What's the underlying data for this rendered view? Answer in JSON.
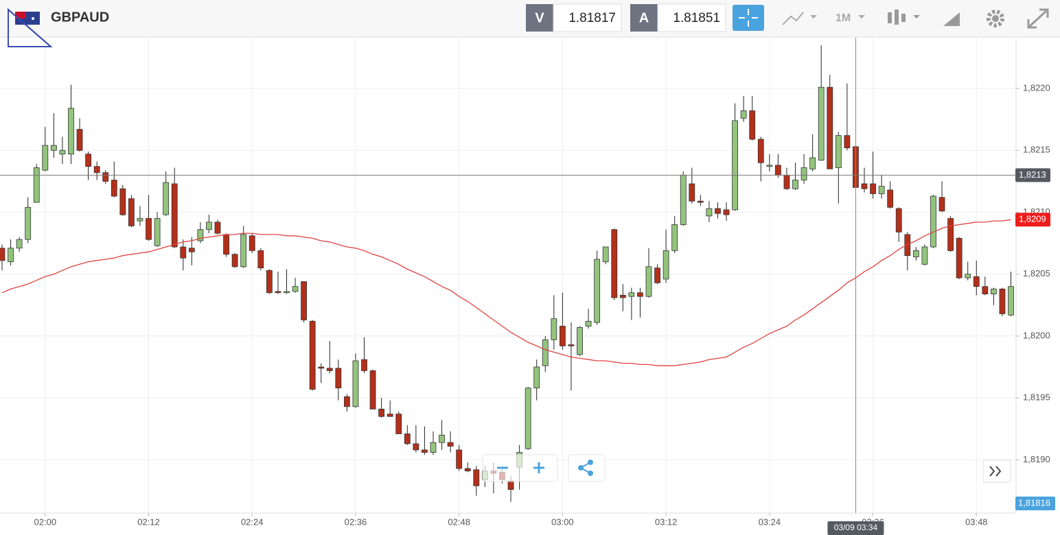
{
  "header": {
    "symbol": "GBPAUD",
    "bid_label": "V",
    "bid": 1.81817,
    "ask_label": "A",
    "ask": 1.81851,
    "timeframe": "1M"
  },
  "chart_data": {
    "type": "candlestick",
    "x": [
      "01:55",
      "01:56",
      "01:57",
      "01:58",
      "01:59",
      "02:00",
      "02:01",
      "02:02",
      "02:03",
      "02:04",
      "02:05",
      "02:06",
      "02:07",
      "02:08",
      "02:09",
      "02:10",
      "02:11",
      "02:12",
      "02:13",
      "02:14",
      "02:15",
      "02:16",
      "02:17",
      "02:18",
      "02:19",
      "02:20",
      "02:21",
      "02:22",
      "02:23",
      "02:24",
      "02:25",
      "02:26",
      "02:27",
      "02:28",
      "02:29",
      "02:30",
      "02:31",
      "02:32",
      "02:33",
      "02:34",
      "02:35",
      "02:36",
      "02:37",
      "02:38",
      "02:39",
      "02:40",
      "02:41",
      "02:42",
      "02:43",
      "02:44",
      "02:45",
      "02:46",
      "02:47",
      "02:48",
      "02:49",
      "02:50",
      "02:51",
      "02:52",
      "02:53",
      "02:54",
      "02:55",
      "02:56",
      "02:57",
      "02:58",
      "02:59",
      "03:00",
      "03:01",
      "03:02",
      "03:03",
      "03:04",
      "03:05",
      "03:06",
      "03:07",
      "03:08",
      "03:09",
      "03:10",
      "03:11",
      "03:12",
      "03:13",
      "03:14",
      "03:15",
      "03:16",
      "03:17",
      "03:18",
      "03:19",
      "03:20",
      "03:21",
      "03:22",
      "03:23",
      "03:24",
      "03:25",
      "03:26",
      "03:27",
      "03:28",
      "03:29",
      "03:30",
      "03:31",
      "03:32",
      "03:33",
      "03:34",
      "03:35",
      "03:36",
      "03:37",
      "03:38",
      "03:39",
      "03:40",
      "03:41",
      "03:42",
      "03:43",
      "03:44",
      "03:45",
      "03:46",
      "03:47",
      "03:48",
      "03:49",
      "03:50",
      "03:51",
      "03:52"
    ],
    "open": [
      1.82071,
      1.8206,
      1.82071,
      1.82078,
      1.82108,
      1.82134,
      1.8215,
      1.82147,
      1.82147,
      1.82167,
      1.82147,
      1.82137,
      1.82132,
      1.82126,
      1.82119,
      1.82111,
      1.82093,
      1.82095,
      1.82073,
      1.82098,
      1.82123,
      1.82072,
      1.82071,
      1.82077,
      1.82086,
      1.82092,
      1.82082,
      1.82066,
      1.82056,
      1.82081,
      1.82069,
      1.82053,
      1.82036,
      1.82035,
      1.82036,
      1.82044,
      1.82012,
      1.81975,
      1.81974,
      1.81974,
      1.81951,
      1.81943,
      1.81981,
      1.81972,
      1.81941,
      1.81937,
      1.81937,
      1.81921,
      1.81913,
      1.81908,
      1.81906,
      1.81914,
      1.81914,
      1.81908,
      1.81893,
      1.81892,
      1.81884,
      1.81891,
      1.8189,
      1.81883,
      1.81894,
      1.81909,
      1.81958,
      1.81976,
      1.81997,
      1.82008,
      1.81993,
      1.81985,
      1.82008,
      1.82011,
      1.8206,
      1.82086,
      1.82033,
      1.82032,
      1.82035,
      1.82032,
      1.82055,
      1.82046,
      1.82069,
      1.8209,
      1.82123,
      1.82109,
      1.82097,
      1.82103,
      1.82102,
      1.82102,
      1.82176,
      1.82182,
      1.82159,
      1.82137,
      1.82138,
      1.8213,
      1.82119,
      1.82126,
      1.82135,
      1.82142,
      1.82201,
      1.82136,
      1.82162,
      1.82153,
      1.82123,
      1.82123,
      1.82115,
      1.82118,
      1.82103,
      1.82082,
      1.82064,
      1.82058,
      1.82072,
      1.82112,
      1.82095,
      1.82079,
      1.82047,
      1.82048,
      1.8204,
      1.82034,
      1.82038,
      1.82017
    ],
    "high": [
      1.82074,
      1.82078,
      1.8208,
      1.82112,
      1.82139,
      1.82169,
      1.8218,
      1.82161,
      1.82203,
      1.82176,
      1.82149,
      1.82141,
      1.82134,
      1.82141,
      1.82122,
      1.82114,
      1.82105,
      1.82114,
      1.821,
      1.82133,
      1.82136,
      1.82078,
      1.8208,
      1.82092,
      1.82098,
      1.82094,
      1.82083,
      1.82067,
      1.82089,
      1.82083,
      1.82071,
      1.82054,
      1.82052,
      1.82054,
      1.82047,
      1.82044,
      1.82013,
      1.81978,
      1.81996,
      1.81981,
      1.81953,
      1.81986,
      1.81999,
      1.81973,
      1.8195,
      1.81948,
      1.81939,
      1.81928,
      1.81928,
      1.81927,
      1.81923,
      1.81932,
      1.81923,
      1.81912,
      1.81898,
      1.81895,
      1.81895,
      1.81898,
      1.81895,
      1.81887,
      1.81912,
      1.81959,
      1.81981,
      1.82,
      1.82033,
      1.82035,
      1.82011,
      1.82008,
      1.82022,
      1.82069,
      1.82072,
      1.82087,
      1.82042,
      1.82039,
      1.82039,
      1.82071,
      1.82058,
      1.82086,
      1.82097,
      1.82133,
      1.82136,
      1.82114,
      1.82109,
      1.82108,
      1.82108,
      1.82188,
      1.82194,
      1.82194,
      1.82161,
      1.82147,
      1.82147,
      1.82136,
      1.8214,
      1.82147,
      1.82163,
      1.82235,
      1.82211,
      1.82165,
      1.82204,
      1.82154,
      1.82136,
      1.82149,
      1.8213,
      1.82125,
      1.82104,
      1.82084,
      1.82072,
      1.82074,
      1.82114,
      1.82125,
      1.82097,
      1.8208,
      1.8206,
      1.82061,
      1.82048,
      1.82039,
      1.82039,
      1.82052
    ],
    "low": [
      1.82053,
      1.82057,
      1.82068,
      1.82075,
      1.82108,
      1.82133,
      1.82144,
      1.82139,
      1.82139,
      1.82149,
      1.82126,
      1.82126,
      1.82123,
      1.82112,
      1.82097,
      1.82088,
      1.82089,
      1.82077,
      1.82072,
      1.82097,
      1.82071,
      1.82053,
      1.82057,
      1.82075,
      1.82083,
      1.82082,
      1.82064,
      1.82055,
      1.82055,
      1.82067,
      1.82053,
      1.82034,
      1.82034,
      1.82034,
      1.82035,
      1.82011,
      1.81956,
      1.81962,
      1.8197,
      1.81948,
      1.81939,
      1.81942,
      1.8197,
      1.81941,
      1.81934,
      1.81935,
      1.81921,
      1.81912,
      1.81906,
      1.81904,
      1.81904,
      1.81908,
      1.81906,
      1.81891,
      1.8189,
      1.81871,
      1.81878,
      1.81873,
      1.81881,
      1.81866,
      1.81876,
      1.81908,
      1.81948,
      1.81971,
      1.81989,
      1.81989,
      1.81956,
      1.81984,
      1.82006,
      1.82009,
      1.82058,
      1.82029,
      1.8202,
      1.82013,
      1.82015,
      1.82031,
      1.82042,
      1.82043,
      1.82067,
      1.82089,
      1.82107,
      1.82105,
      1.82092,
      1.82095,
      1.82093,
      1.82101,
      1.82173,
      1.82158,
      1.82125,
      1.82133,
      1.82128,
      1.82118,
      1.82118,
      1.82123,
      1.82133,
      1.82142,
      1.82135,
      1.82107,
      1.8215,
      1.8212,
      1.82116,
      1.82111,
      1.82111,
      1.82103,
      1.82076,
      1.82053,
      1.82061,
      1.82057,
      1.82071,
      1.821,
      1.82068,
      1.82046,
      1.82045,
      1.82033,
      1.82033,
      1.82025,
      1.82016,
      1.82016
    ],
    "close": [
      1.82061,
      1.82071,
      1.82078,
      1.82104,
      1.82136,
      1.82154,
      1.82154,
      1.8215,
      1.82184,
      1.8215,
      1.82137,
      1.82132,
      1.82125,
      1.82113,
      1.82098,
      1.82089,
      1.82095,
      1.82078,
      1.82095,
      1.82124,
      1.82072,
      1.82063,
      1.82068,
      1.82086,
      1.82092,
      1.82083,
      1.82066,
      1.82056,
      1.82082,
      1.82069,
      1.82055,
      1.82035,
      1.82035,
      1.82036,
      1.8204,
      1.82013,
      1.81957,
      1.81974,
      1.81972,
      1.81958,
      1.81943,
      1.8198,
      1.81972,
      1.81941,
      1.81935,
      1.81935,
      1.81921,
      1.81913,
      1.81908,
      1.81906,
      1.81914,
      1.8192,
      1.81911,
      1.81893,
      1.81891,
      1.81879,
      1.81891,
      1.81889,
      1.81884,
      1.81876,
      1.81906,
      1.81958,
      1.81975,
      1.81997,
      1.82014,
      1.81992,
      1.81992,
      1.82007,
      1.82012,
      1.82062,
      1.82072,
      1.82031,
      1.82031,
      1.82035,
      1.82032,
      1.82056,
      1.82043,
      1.82069,
      1.8209,
      1.8213,
      1.82109,
      1.82108,
      1.82103,
      1.82099,
      1.82098,
      1.82174,
      1.82182,
      1.82159,
      1.8214,
      1.82138,
      1.8213,
      1.82119,
      1.82126,
      1.82136,
      1.82144,
      1.82201,
      1.82135,
      1.82162,
      1.82152,
      1.8212,
      1.82119,
      1.82115,
      1.82121,
      1.82104,
      1.82084,
      1.82065,
      1.82069,
      1.82072,
      1.82113,
      1.82101,
      1.82069,
      1.82047,
      1.8205,
      1.8204,
      1.82034,
      1.82038,
      1.82018,
      1.8204
    ],
    "up_color": "#93c47d",
    "down_color": "#b3301b",
    "ma": {
      "color": "#e04040",
      "last_label": "1,8209",
      "values": [
        1.82035,
        1.82038,
        1.8204,
        1.82042,
        1.82045,
        1.82048,
        1.8205,
        1.82053,
        1.82056,
        1.82058,
        1.8206,
        1.82061,
        1.82062,
        1.82063,
        1.82065,
        1.82066,
        1.82067,
        1.82068,
        1.8207,
        1.82072,
        1.82074,
        1.82076,
        1.82077,
        1.82079,
        1.8208,
        1.82081,
        1.82082,
        1.82082,
        1.82083,
        1.82083,
        1.82082,
        1.82082,
        1.82082,
        1.82081,
        1.82081,
        1.8208,
        1.82079,
        1.82077,
        1.82076,
        1.82074,
        1.82072,
        1.82071,
        1.82069,
        1.82066,
        1.82064,
        1.82061,
        1.82058,
        1.82054,
        1.82051,
        1.82048,
        1.82044,
        1.8204,
        1.82037,
        1.82032,
        1.82028,
        1.82023,
        1.82018,
        1.82013,
        1.82008,
        1.82003,
        1.81999,
        1.81995,
        1.81992,
        1.81989,
        1.81987,
        1.81985,
        1.81983,
        1.81982,
        1.81981,
        1.8198,
        1.8198,
        1.81979,
        1.81978,
        1.81978,
        1.81977,
        1.81977,
        1.81976,
        1.81976,
        1.81976,
        1.81977,
        1.81978,
        1.81979,
        1.81981,
        1.81982,
        1.81983,
        1.81987,
        1.81991,
        1.81994,
        1.81998,
        1.82002,
        1.82005,
        1.82008,
        1.82013,
        1.82017,
        1.82022,
        1.82027,
        1.82032,
        1.82037,
        1.82043,
        1.82047,
        1.82052,
        1.82056,
        1.82061,
        1.82065,
        1.8207,
        1.82074,
        1.82077,
        1.82081,
        1.82084,
        1.82087,
        1.82089,
        1.8209,
        1.82091,
        1.82092,
        1.82092,
        1.82093,
        1.82093,
        1.82094
      ]
    },
    "ylim": [
      1.81857,
      1.82241
    ],
    "yticks": [
      {
        "value": 1.819,
        "label": "1,8190"
      },
      {
        "value": 1.8195,
        "label": "1,8195"
      },
      {
        "value": 1.82,
        "label": "1,8200"
      },
      {
        "value": 1.8205,
        "label": "1,8205"
      },
      {
        "value": 1.821,
        "label": "1,8210"
      },
      {
        "value": 1.8215,
        "label": "1,8215"
      },
      {
        "value": 1.822,
        "label": "1,8220"
      }
    ],
    "xticks": [
      "02:00",
      "02:12",
      "02:24",
      "02:36",
      "02:48",
      "03:00",
      "03:12",
      "03:24",
      "03:36",
      "03:48"
    ],
    "grid": true,
    "price_marker": {
      "value": 1.81816,
      "label": "1,81816",
      "color": "#4aa3df"
    },
    "crosshair": {
      "x": "03:34",
      "y": 1.8213,
      "x_label": "03/09 03:34",
      "y_label": "1,8213"
    }
  }
}
